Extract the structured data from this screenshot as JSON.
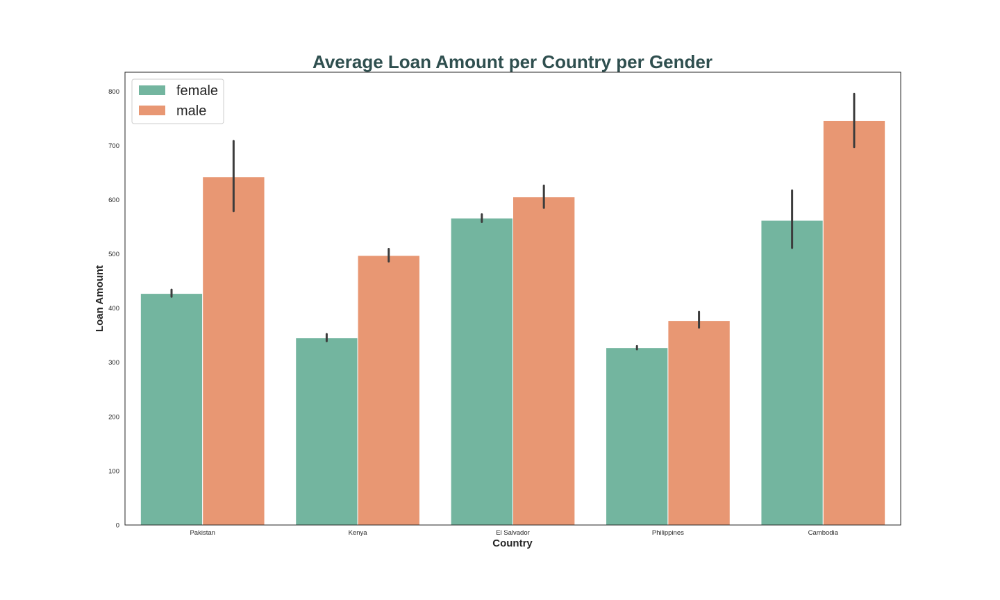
{
  "chart_data": {
    "type": "bar",
    "title": "Average Loan Amount per Country per Gender",
    "xlabel": "Country",
    "ylabel": "Loan Amount",
    "categories": [
      "Pakistan",
      "Kenya",
      "El Salvador",
      "Philippines",
      "Cambodia"
    ],
    "series": [
      {
        "name": "female",
        "color": "#73b59f",
        "values": [
          427,
          345,
          566,
          327,
          562
        ],
        "error_low": [
          421,
          339,
          559,
          324,
          511
        ],
        "error_high": [
          434,
          352,
          573,
          330,
          617
        ]
      },
      {
        "name": "male",
        "color": "#e89773",
        "values": [
          642,
          497,
          605,
          377,
          746
        ],
        "error_low": [
          579,
          486,
          585,
          364,
          697
        ],
        "error_high": [
          708,
          509,
          626,
          393,
          795
        ]
      }
    ],
    "ylim": [
      0,
      835
    ],
    "yticks": [
      0,
      100,
      200,
      300,
      400,
      500,
      600,
      700,
      800
    ],
    "grid": false,
    "legend_position": "top-left",
    "error_bar_color": "#3c3c3c"
  }
}
